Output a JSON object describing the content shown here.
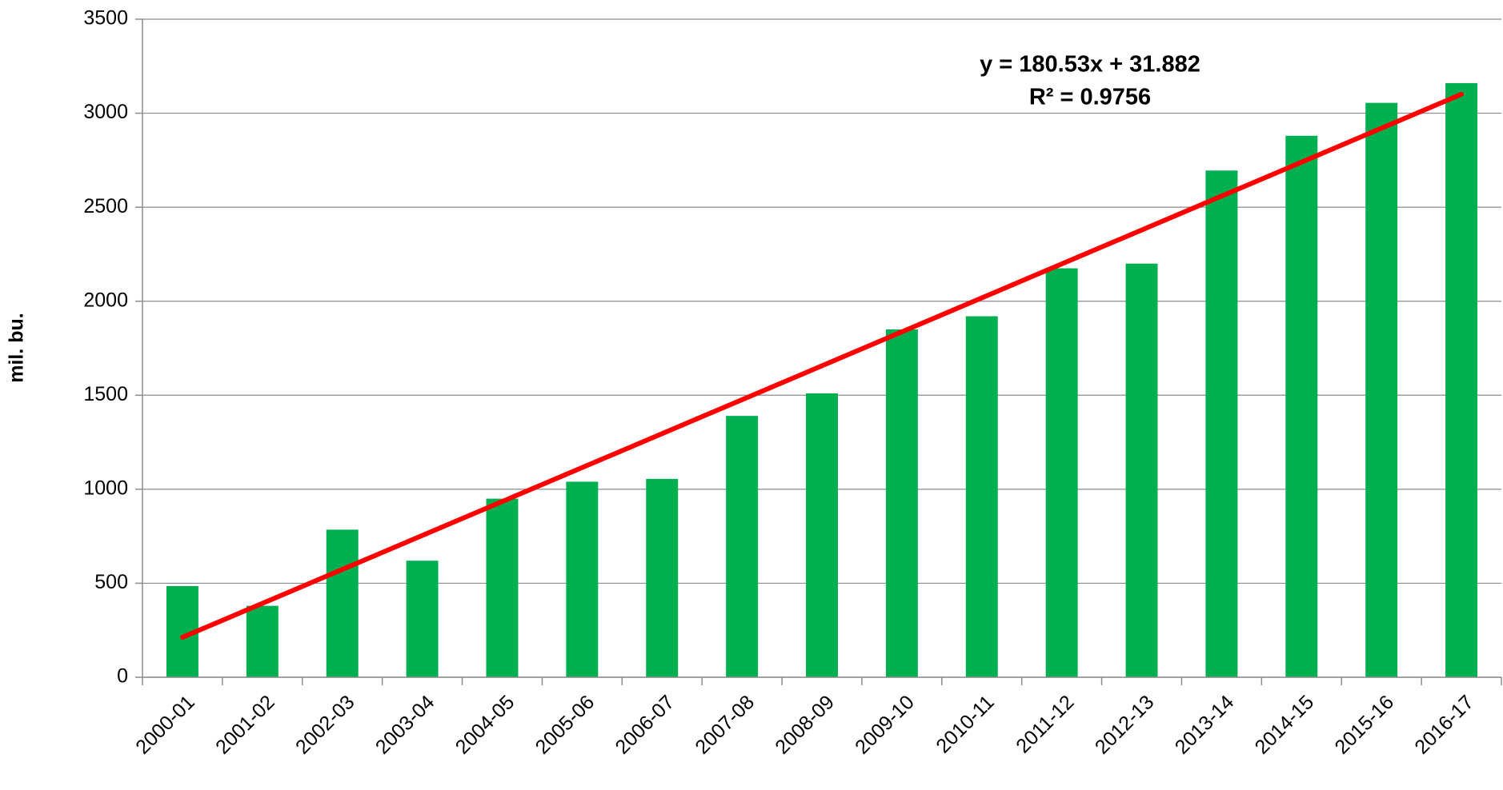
{
  "chart_data": {
    "type": "bar",
    "ylabel": "mil. bu.",
    "categories": [
      "2000-01",
      "2001-02",
      "2002-03",
      "2003-04",
      "2004-05",
      "2005-06",
      "2006-07",
      "2007-08",
      "2008-09",
      "2009-10",
      "2010-11",
      "2011-12",
      "2012-13",
      "2013-14",
      "2014-15",
      "2015-16",
      "2016-17"
    ],
    "values": [
      485,
      380,
      785,
      620,
      950,
      1040,
      1055,
      1390,
      1510,
      1850,
      1920,
      2175,
      2200,
      2695,
      2880,
      3055,
      3160
    ],
    "color": "#00b050",
    "ylim": [
      0,
      3500
    ],
    "yticks": [
      0,
      500,
      1000,
      1500,
      2000,
      2500,
      3000,
      3500
    ],
    "grid": true,
    "trendline": {
      "slope": 180.53,
      "intercept": 31.882,
      "color": "#ff0000"
    },
    "annotations": [
      "y = 180.53x + 31.882",
      "R² = 0.9756"
    ]
  }
}
